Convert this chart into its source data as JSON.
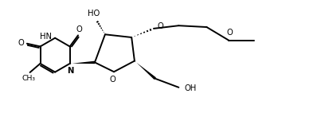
{
  "bg_color": "#ffffff",
  "line_color": "#000000",
  "line_width": 1.4,
  "figsize": [
    4.08,
    1.42
  ],
  "dpi": 100,
  "xlim": [
    0,
    110
  ],
  "ylim": [
    0,
    38
  ]
}
